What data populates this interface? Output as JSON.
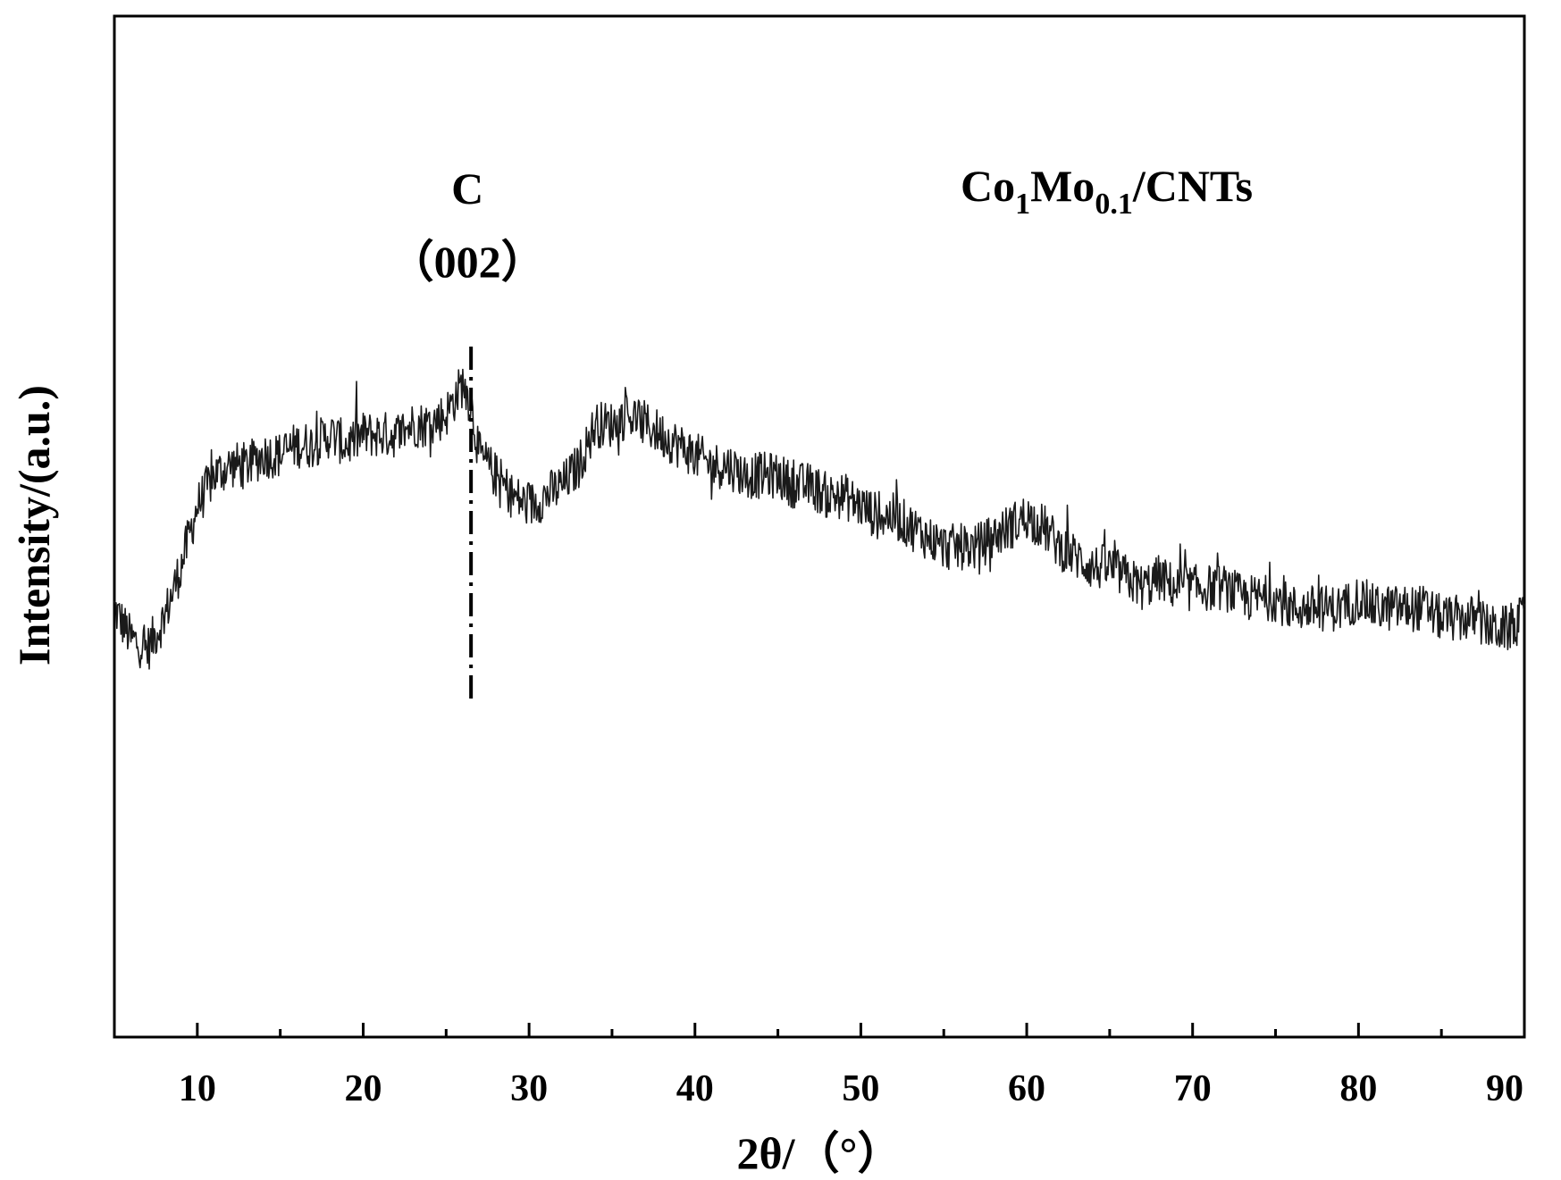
{
  "chart_data": {
    "type": "line",
    "xlabel": "2θ/（°）",
    "ylabel": "Intensity/(a.u.)",
    "xlim": [
      5,
      90
    ],
    "ylim": [
      0,
      100
    ],
    "x_ticks": [
      10,
      20,
      30,
      40,
      50,
      60,
      70,
      80,
      90
    ],
    "x_minor_step": 5,
    "y_ticks_labeled": false,
    "grid": false,
    "legend": "none",
    "line_color": "#1a1a1a",
    "series": [
      {
        "x": [
          5,
          6,
          7,
          8,
          9,
          10,
          11,
          12,
          13,
          14,
          15,
          16,
          17,
          18,
          19,
          20,
          21,
          22,
          23,
          24,
          25,
          26,
          26.5,
          27,
          28,
          29,
          30,
          31,
          32,
          33,
          34,
          35,
          36,
          37,
          38,
          39,
          40,
          41,
          42,
          43,
          44,
          45,
          46,
          47,
          48,
          49,
          50,
          51,
          52,
          53,
          54,
          55,
          56,
          57,
          58,
          59,
          60,
          61,
          62,
          63,
          64,
          65,
          66,
          67,
          68,
          69,
          70,
          71,
          72,
          73,
          74,
          75,
          76,
          77,
          78,
          79,
          80,
          81,
          82,
          83,
          84,
          85,
          86,
          87,
          88,
          89,
          90
        ],
        "y": [
          42,
          39,
          38,
          41,
          46,
          52,
          55,
          56,
          56,
          57,
          57,
          58,
          58,
          59,
          58,
          59,
          59,
          59,
          60,
          60,
          61,
          64,
          62,
          57,
          55,
          53,
          52,
          53,
          54,
          56,
          60,
          60,
          61,
          60,
          59,
          58,
          57,
          56,
          56,
          55,
          55,
          55,
          54,
          54,
          53,
          53,
          52,
          51,
          51,
          50,
          49,
          48,
          48,
          48,
          49,
          50,
          51,
          50,
          48,
          47,
          46,
          46,
          45,
          44,
          45,
          44,
          44,
          44,
          44,
          43,
          43,
          43,
          42,
          42,
          42,
          42,
          43,
          42,
          42,
          42,
          42,
          41,
          41,
          41,
          40,
          40,
          41
        ]
      }
    ],
    "annotations": [
      {
        "line1": "C",
        "line2": "（002）",
        "x": 26.5,
        "style": "dash-dot"
      },
      {
        "base1": "Co",
        "sub1": "1",
        "base2": "Mo",
        "sub2": "0.1",
        "tail": "/CNTs"
      }
    ]
  }
}
